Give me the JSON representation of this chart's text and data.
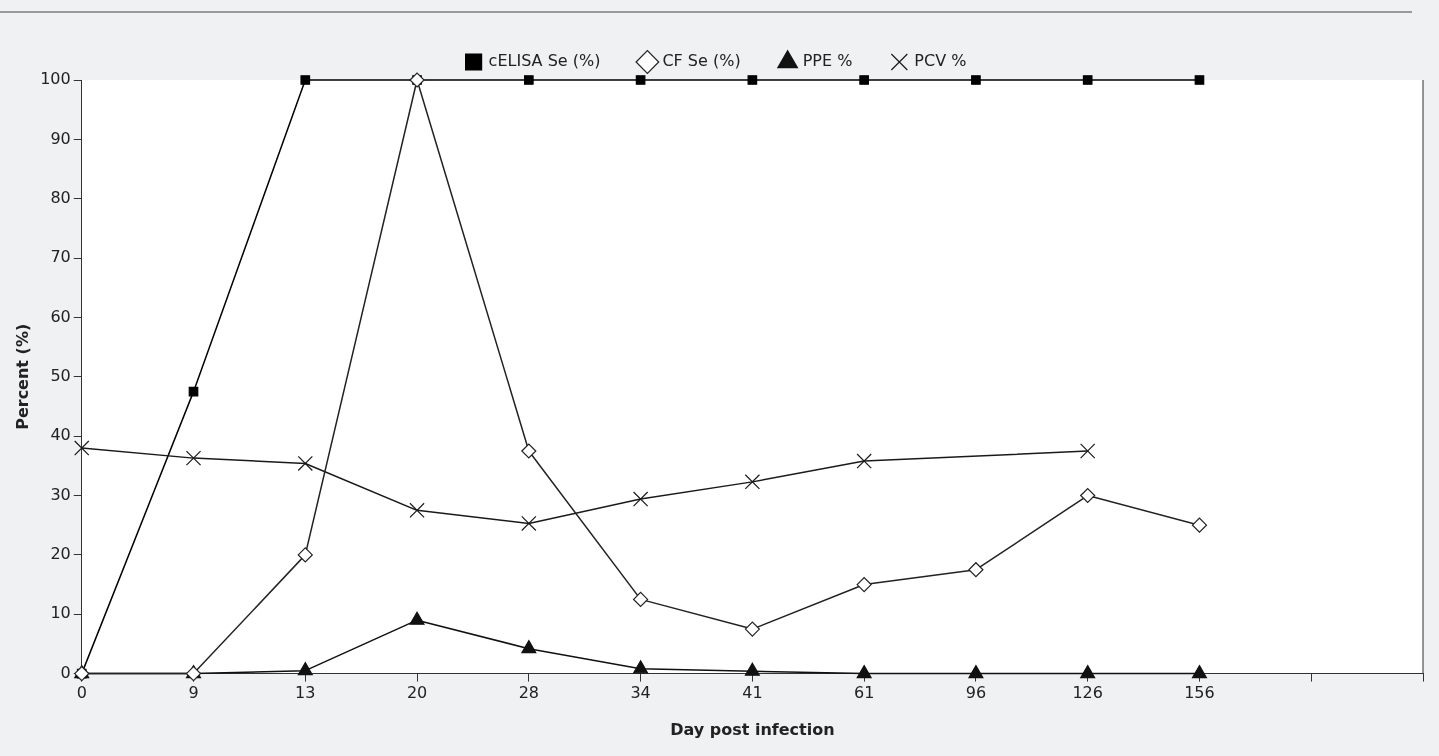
{
  "chart_data": {
    "type": "line",
    "xlabel": "Day post infection",
    "ylabel": "Percent (%)",
    "categories": [
      "0",
      "9",
      "13",
      "20",
      "28",
      "34",
      "41",
      "61",
      "96",
      "126",
      "156",
      null,
      null
    ],
    "ylim": [
      0,
      100
    ],
    "yticks": [
      0,
      10,
      20,
      30,
      40,
      50,
      60,
      70,
      80,
      90,
      100
    ],
    "grid": false,
    "legend": "top",
    "series": [
      {
        "name": "cELISA Se (%)",
        "color": "#000000",
        "marker": "square",
        "values": [
          0,
          47.5,
          100,
          100,
          100,
          100,
          100,
          100,
          100,
          100,
          100,
          null,
          null
        ]
      },
      {
        "name": "CF Se (%)",
        "color": "#222222",
        "marker": "diamond",
        "values": [
          0,
          0,
          20,
          100,
          37.5,
          12.5,
          7.5,
          15,
          17.5,
          30,
          25,
          null,
          null
        ]
      },
      {
        "name": "PPE %",
        "color": "#111111",
        "marker": "triangle",
        "values": [
          0,
          0,
          0.5,
          9,
          4.2,
          0.8,
          0.4,
          0,
          0,
          0,
          0,
          null,
          null
        ]
      },
      {
        "name": "PCV %",
        "color": "#1a1a1a",
        "marker": "cross",
        "values": [
          38,
          36.3,
          35.4,
          27.5,
          25.3,
          29.4,
          32.3,
          35.8,
          null,
          37.5,
          null,
          null,
          null
        ]
      }
    ]
  }
}
